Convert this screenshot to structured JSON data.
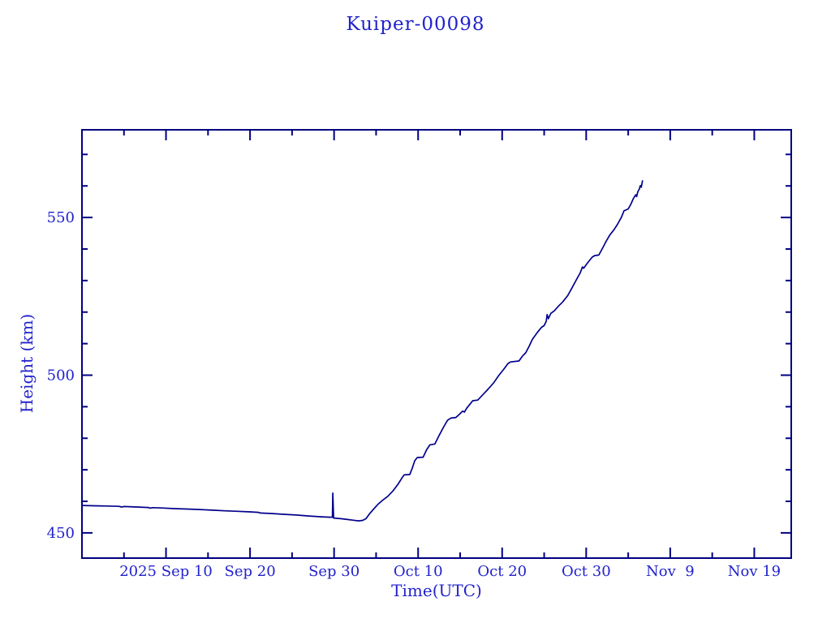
{
  "title": {
    "text": "Kuiper-00098"
  },
  "colors": {
    "text": "#2222cc",
    "frame": "#000080",
    "line": "#00008b",
    "background": "#ffffff"
  },
  "chart_data": {
    "type": "line",
    "title": "Kuiper-00098",
    "xlabel": "Time(UTC)",
    "ylabel": "Height (km)",
    "x_axis_note": "days measured from 2025 Aug 31 00:00 UTC",
    "xlim_days": [
      0,
      84.4
    ],
    "ylim": [
      442,
      577.8
    ],
    "grid": false,
    "legend": null,
    "x_major_ticks": [
      {
        "day": 10,
        "label": "2025 Sep 10"
      },
      {
        "day": 20,
        "label": "Sep 20"
      },
      {
        "day": 30,
        "label": "Sep 30"
      },
      {
        "day": 40,
        "label": "Oct 10"
      },
      {
        "day": 50,
        "label": "Oct 20"
      },
      {
        "day": 60,
        "label": "Oct 30"
      },
      {
        "day": 70,
        "label": "Nov  9"
      },
      {
        "day": 80,
        "label": "Nov 19"
      }
    ],
    "x_minor_tick_days": [
      5,
      15,
      25,
      35,
      45,
      55,
      65,
      75
    ],
    "y_major_ticks": [
      {
        "value": 450,
        "label": "450"
      },
      {
        "value": 500,
        "label": "500"
      },
      {
        "value": 550,
        "label": "550"
      }
    ],
    "y_minor_tick_values": [
      460,
      470,
      480,
      490,
      510,
      520,
      530,
      540,
      560,
      570
    ],
    "series": [
      {
        "name": "height",
        "color": "#00008b",
        "points": [
          [
            0.0,
            458.7
          ],
          [
            1.5,
            458.6
          ],
          [
            3.0,
            458.5
          ],
          [
            4.4,
            458.4
          ],
          [
            4.7,
            458.2
          ],
          [
            5.0,
            458.35
          ],
          [
            6.5,
            458.2
          ],
          [
            7.9,
            458.05
          ],
          [
            8.1,
            457.85
          ],
          [
            8.4,
            458.0
          ],
          [
            9.5,
            457.9
          ],
          [
            11.0,
            457.7
          ],
          [
            12.5,
            457.55
          ],
          [
            14.0,
            457.4
          ],
          [
            15.5,
            457.2
          ],
          [
            17.0,
            457.0
          ],
          [
            18.5,
            456.85
          ],
          [
            20.0,
            456.65
          ],
          [
            21.0,
            456.5
          ],
          [
            21.2,
            456.3
          ],
          [
            22.5,
            456.15
          ],
          [
            24.0,
            455.9
          ],
          [
            25.5,
            455.65
          ],
          [
            27.0,
            455.35
          ],
          [
            28.5,
            455.1
          ],
          [
            29.6,
            454.95
          ],
          [
            29.8,
            455.0
          ],
          [
            29.85,
            462.6
          ],
          [
            29.95,
            454.7
          ],
          [
            30.8,
            454.5
          ],
          [
            31.6,
            454.25
          ],
          [
            32.3,
            454.0
          ],
          [
            32.9,
            453.8
          ],
          [
            33.4,
            453.95
          ],
          [
            33.8,
            454.5
          ],
          [
            34.2,
            456.0
          ],
          [
            34.7,
            457.5
          ],
          [
            35.2,
            459.0
          ],
          [
            35.8,
            460.4
          ],
          [
            36.4,
            461.6
          ],
          [
            37.0,
            463.3
          ],
          [
            37.6,
            465.4
          ],
          [
            38.1,
            467.5
          ],
          [
            38.35,
            468.4
          ],
          [
            39.0,
            468.5
          ],
          [
            39.3,
            470.5
          ],
          [
            39.6,
            472.9
          ],
          [
            39.9,
            473.9
          ],
          [
            40.6,
            474.0
          ],
          [
            41.0,
            476.3
          ],
          [
            41.4,
            477.9
          ],
          [
            42.0,
            478.2
          ],
          [
            42.5,
            480.9
          ],
          [
            43.0,
            483.4
          ],
          [
            43.5,
            485.7
          ],
          [
            43.9,
            486.4
          ],
          [
            44.5,
            486.6
          ],
          [
            45.0,
            487.8
          ],
          [
            45.3,
            488.6
          ],
          [
            45.5,
            488.3
          ],
          [
            45.8,
            489.6
          ],
          [
            46.2,
            490.9
          ],
          [
            46.5,
            491.9
          ],
          [
            47.1,
            492.1
          ],
          [
            47.7,
            493.8
          ],
          [
            48.3,
            495.5
          ],
          [
            49.0,
            497.6
          ],
          [
            49.6,
            499.9
          ],
          [
            50.2,
            501.9
          ],
          [
            50.7,
            503.7
          ],
          [
            51.0,
            504.2
          ],
          [
            52.0,
            504.5
          ],
          [
            52.4,
            506.0
          ],
          [
            52.8,
            507.1
          ],
          [
            53.2,
            509.1
          ],
          [
            53.6,
            511.4
          ],
          [
            54.2,
            513.6
          ],
          [
            54.7,
            515.2
          ],
          [
            55.0,
            515.7
          ],
          [
            55.25,
            517.1
          ],
          [
            55.35,
            519.2
          ],
          [
            55.5,
            517.9
          ],
          [
            55.8,
            519.6
          ],
          [
            56.2,
            520.4
          ],
          [
            56.7,
            521.9
          ],
          [
            57.2,
            523.2
          ],
          [
            57.8,
            525.2
          ],
          [
            58.3,
            527.6
          ],
          [
            58.8,
            530.1
          ],
          [
            59.3,
            532.5
          ],
          [
            59.55,
            534.3
          ],
          [
            59.7,
            533.9
          ],
          [
            60.1,
            535.4
          ],
          [
            60.7,
            537.4
          ],
          [
            61.0,
            537.9
          ],
          [
            61.5,
            538.1
          ],
          [
            62.0,
            540.5
          ],
          [
            62.4,
            542.6
          ],
          [
            62.8,
            544.4
          ],
          [
            63.3,
            546.1
          ],
          [
            63.7,
            547.7
          ],
          [
            64.2,
            550.1
          ],
          [
            64.5,
            552.1
          ],
          [
            65.0,
            552.7
          ],
          [
            65.3,
            554.1
          ],
          [
            65.6,
            555.9
          ],
          [
            65.9,
            557.2
          ],
          [
            66.0,
            556.6
          ],
          [
            66.15,
            558.2
          ],
          [
            66.3,
            558.9
          ],
          [
            66.45,
            560.1
          ],
          [
            66.55,
            559.6
          ],
          [
            66.7,
            561.6
          ]
        ]
      }
    ]
  }
}
